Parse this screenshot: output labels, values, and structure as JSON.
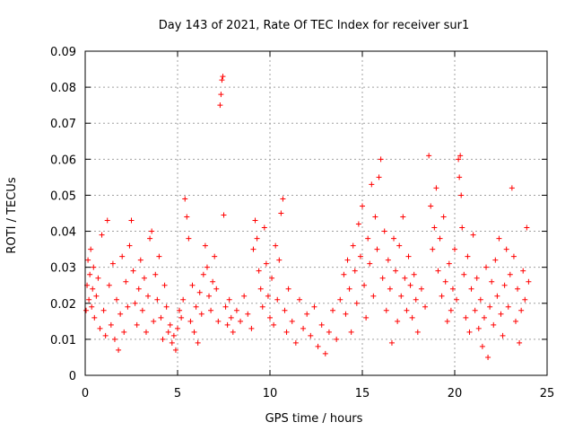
{
  "chart_data": {
    "type": "scatter",
    "title": "Day 143 of 2021, Rate Of TEC Index for receiver sur1",
    "xlabel": "GPS time / hours",
    "ylabel": "ROTI / TECUs",
    "xlim": [
      0,
      25
    ],
    "ylim": [
      0,
      0.09
    ],
    "xticks": [
      0,
      5,
      10,
      15,
      20,
      25
    ],
    "xtick_labels": [
      "0",
      "5",
      "10",
      "15",
      "20",
      "25"
    ],
    "yticks": [
      0,
      0.01,
      0.02,
      0.03,
      0.04,
      0.05,
      0.06,
      0.07,
      0.08,
      0.09
    ],
    "ytick_labels": [
      "0",
      "0.01",
      "0.02",
      "0.03",
      "0.04",
      "0.05",
      "0.06",
      "0.07",
      "0.08",
      "0.09"
    ],
    "grid": true,
    "marker": "plus",
    "color": "#ff0000",
    "series": [
      {
        "points": [
          [
            0.05,
            0.018
          ],
          [
            0.1,
            0.025
          ],
          [
            0.15,
            0.032
          ],
          [
            0.2,
            0.021
          ],
          [
            0.25,
            0.028
          ],
          [
            0.3,
            0.035
          ],
          [
            0.35,
            0.019
          ],
          [
            0.4,
            0.024
          ],
          [
            0.45,
            0.03
          ],
          [
            0.5,
            0.016
          ],
          [
            0.6,
            0.022
          ],
          [
            0.7,
            0.027
          ],
          [
            0.8,
            0.013
          ],
          [
            0.9,
            0.039
          ],
          [
            1.0,
            0.018
          ],
          [
            1.1,
            0.011
          ],
          [
            1.2,
            0.043
          ],
          [
            1.3,
            0.025
          ],
          [
            1.4,
            0.014
          ],
          [
            1.5,
            0.031
          ],
          [
            1.6,
            0.01
          ],
          [
            1.7,
            0.021
          ],
          [
            1.8,
            0.007
          ],
          [
            1.9,
            0.017
          ],
          [
            2.0,
            0.033
          ],
          [
            2.1,
            0.012
          ],
          [
            2.2,
            0.026
          ],
          [
            2.3,
            0.019
          ],
          [
            2.4,
            0.036
          ],
          [
            2.5,
            0.043
          ],
          [
            2.6,
            0.029
          ],
          [
            2.7,
            0.02
          ],
          [
            2.8,
            0.014
          ],
          [
            2.9,
            0.024
          ],
          [
            3.0,
            0.032
          ],
          [
            3.1,
            0.018
          ],
          [
            3.2,
            0.027
          ],
          [
            3.3,
            0.012
          ],
          [
            3.4,
            0.022
          ],
          [
            3.5,
            0.038
          ],
          [
            3.6,
            0.04
          ],
          [
            3.7,
            0.015
          ],
          [
            3.8,
            0.028
          ],
          [
            3.9,
            0.021
          ],
          [
            4.0,
            0.033
          ],
          [
            4.1,
            0.016
          ],
          [
            4.2,
            0.01
          ],
          [
            4.3,
            0.025
          ],
          [
            4.4,
            0.019
          ],
          [
            4.5,
            0.012
          ],
          [
            4.6,
            0.014
          ],
          [
            4.7,
            0.009
          ],
          [
            4.8,
            0.011
          ],
          [
            4.9,
            0.007
          ],
          [
            5.0,
            0.013
          ],
          [
            5.1,
            0.018
          ],
          [
            5.2,
            0.016
          ],
          [
            5.3,
            0.021
          ],
          [
            5.4,
            0.049
          ],
          [
            5.5,
            0.044
          ],
          [
            5.6,
            0.038
          ],
          [
            5.7,
            0.015
          ],
          [
            5.8,
            0.025
          ],
          [
            5.9,
            0.012
          ],
          [
            6.0,
            0.019
          ],
          [
            6.1,
            0.009
          ],
          [
            6.2,
            0.023
          ],
          [
            6.3,
            0.017
          ],
          [
            6.4,
            0.028
          ],
          [
            6.5,
            0.036
          ],
          [
            6.6,
            0.03
          ],
          [
            6.7,
            0.022
          ],
          [
            6.8,
            0.018
          ],
          [
            6.9,
            0.026
          ],
          [
            7.0,
            0.033
          ],
          [
            7.1,
            0.024
          ],
          [
            7.2,
            0.015
          ],
          [
            7.3,
            0.075
          ],
          [
            7.35,
            0.078
          ],
          [
            7.4,
            0.082
          ],
          [
            7.45,
            0.083
          ],
          [
            7.5,
            0.0445
          ],
          [
            7.6,
            0.019
          ],
          [
            7.7,
            0.014
          ],
          [
            7.8,
            0.021
          ],
          [
            7.9,
            0.016
          ],
          [
            8.0,
            0.012
          ],
          [
            8.2,
            0.018
          ],
          [
            8.4,
            0.015
          ],
          [
            8.6,
            0.022
          ],
          [
            8.8,
            0.017
          ],
          [
            9.0,
            0.013
          ],
          [
            9.1,
            0.035
          ],
          [
            9.2,
            0.043
          ],
          [
            9.3,
            0.038
          ],
          [
            9.4,
            0.029
          ],
          [
            9.5,
            0.024
          ],
          [
            9.6,
            0.019
          ],
          [
            9.7,
            0.041
          ],
          [
            9.8,
            0.031
          ],
          [
            9.9,
            0.022
          ],
          [
            10.0,
            0.016
          ],
          [
            10.1,
            0.027
          ],
          [
            10.2,
            0.014
          ],
          [
            10.3,
            0.036
          ],
          [
            10.4,
            0.021
          ],
          [
            10.5,
            0.032
          ],
          [
            10.6,
            0.045
          ],
          [
            10.7,
            0.049
          ],
          [
            10.8,
            0.018
          ],
          [
            10.9,
            0.012
          ],
          [
            11.0,
            0.024
          ],
          [
            11.2,
            0.015
          ],
          [
            11.4,
            0.009
          ],
          [
            11.6,
            0.021
          ],
          [
            11.8,
            0.013
          ],
          [
            12.0,
            0.017
          ],
          [
            12.2,
            0.011
          ],
          [
            12.4,
            0.019
          ],
          [
            12.6,
            0.008
          ],
          [
            12.8,
            0.014
          ],
          [
            13.0,
            0.006
          ],
          [
            13.2,
            0.012
          ],
          [
            13.4,
            0.018
          ],
          [
            13.6,
            0.01
          ],
          [
            13.8,
            0.021
          ],
          [
            14.0,
            0.028
          ],
          [
            14.1,
            0.017
          ],
          [
            14.2,
            0.032
          ],
          [
            14.3,
            0.024
          ],
          [
            14.4,
            0.012
          ],
          [
            14.5,
            0.036
          ],
          [
            14.6,
            0.029
          ],
          [
            14.7,
            0.02
          ],
          [
            14.8,
            0.042
          ],
          [
            14.9,
            0.033
          ],
          [
            15.0,
            0.047
          ],
          [
            15.1,
            0.025
          ],
          [
            15.2,
            0.016
          ],
          [
            15.3,
            0.038
          ],
          [
            15.4,
            0.031
          ],
          [
            15.5,
            0.053
          ],
          [
            15.6,
            0.022
          ],
          [
            15.7,
            0.044
          ],
          [
            15.8,
            0.035
          ],
          [
            15.9,
            0.055
          ],
          [
            16.0,
            0.06
          ],
          [
            16.1,
            0.027
          ],
          [
            16.2,
            0.04
          ],
          [
            16.3,
            0.018
          ],
          [
            16.4,
            0.032
          ],
          [
            16.5,
            0.024
          ],
          [
            16.6,
            0.009
          ],
          [
            16.7,
            0.038
          ],
          [
            16.8,
            0.029
          ],
          [
            16.9,
            0.015
          ],
          [
            17.0,
            0.036
          ],
          [
            17.1,
            0.022
          ],
          [
            17.2,
            0.044
          ],
          [
            17.3,
            0.027
          ],
          [
            17.4,
            0.018
          ],
          [
            17.5,
            0.033
          ],
          [
            17.6,
            0.025
          ],
          [
            17.7,
            0.016
          ],
          [
            17.8,
            0.028
          ],
          [
            17.9,
            0.021
          ],
          [
            18.0,
            0.012
          ],
          [
            18.2,
            0.024
          ],
          [
            18.4,
            0.019
          ],
          [
            18.6,
            0.061
          ],
          [
            18.7,
            0.047
          ],
          [
            18.8,
            0.035
          ],
          [
            18.9,
            0.041
          ],
          [
            19.0,
            0.052
          ],
          [
            19.1,
            0.029
          ],
          [
            19.2,
            0.038
          ],
          [
            19.3,
            0.022
          ],
          [
            19.4,
            0.044
          ],
          [
            19.5,
            0.026
          ],
          [
            19.6,
            0.015
          ],
          [
            19.7,
            0.031
          ],
          [
            19.8,
            0.018
          ],
          [
            19.9,
            0.024
          ],
          [
            20.0,
            0.035
          ],
          [
            20.1,
            0.021
          ],
          [
            20.2,
            0.06
          ],
          [
            20.25,
            0.055
          ],
          [
            20.3,
            0.061
          ],
          [
            20.35,
            0.05
          ],
          [
            20.4,
            0.041
          ],
          [
            20.5,
            0.028
          ],
          [
            20.6,
            0.016
          ],
          [
            20.7,
            0.033
          ],
          [
            20.8,
            0.012
          ],
          [
            20.9,
            0.024
          ],
          [
            21.0,
            0.039
          ],
          [
            21.1,
            0.018
          ],
          [
            21.2,
            0.027
          ],
          [
            21.3,
            0.013
          ],
          [
            21.4,
            0.021
          ],
          [
            21.5,
            0.008
          ],
          [
            21.6,
            0.016
          ],
          [
            21.7,
            0.03
          ],
          [
            21.8,
            0.005
          ],
          [
            21.9,
            0.019
          ],
          [
            22.0,
            0.026
          ],
          [
            22.1,
            0.014
          ],
          [
            22.2,
            0.032
          ],
          [
            22.3,
            0.022
          ],
          [
            22.4,
            0.038
          ],
          [
            22.5,
            0.017
          ],
          [
            22.6,
            0.011
          ],
          [
            22.7,
            0.025
          ],
          [
            22.8,
            0.035
          ],
          [
            22.9,
            0.019
          ],
          [
            23.0,
            0.028
          ],
          [
            23.1,
            0.052
          ],
          [
            23.2,
            0.033
          ],
          [
            23.3,
            0.015
          ],
          [
            23.4,
            0.024
          ],
          [
            23.5,
            0.009
          ],
          [
            23.6,
            0.018
          ],
          [
            23.7,
            0.029
          ],
          [
            23.8,
            0.021
          ],
          [
            23.9,
            0.041
          ],
          [
            24.0,
            0.026
          ]
        ]
      }
    ]
  }
}
